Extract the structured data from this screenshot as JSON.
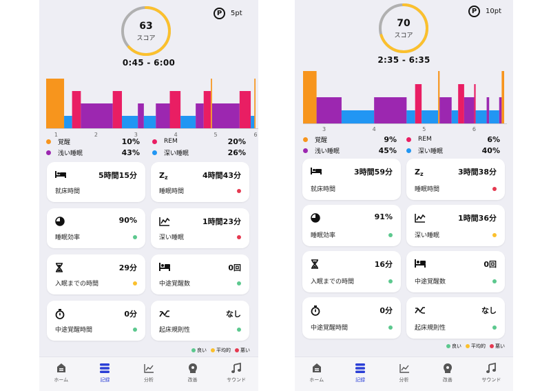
{
  "colors": {
    "awake": "#f7951d",
    "rem": "#e91e63",
    "light": "#9c27b0",
    "deep": "#2196f3",
    "good": "#5cc88e",
    "average": "#fbc02d",
    "bad": "#e53950",
    "score_arc": "#fbc02d",
    "score_rest": "#b0b0b0",
    "active_nav": "#2b3fd6"
  },
  "screens": [
    {
      "score": {
        "value": "63",
        "label": "スコア",
        "fraction": 0.63
      },
      "points": {
        "badge": "P",
        "value": "5pt"
      },
      "time_range": "0:45 - 6:00",
      "chart_data": {
        "type": "bar",
        "x_ticks": [
          "1",
          "2",
          "3",
          "4",
          "5",
          "6"
        ],
        "stage_levels": {
          "awake": 4,
          "rem": 3,
          "light": 2,
          "deep": 1
        },
        "segments": [
          {
            "stage": "awake",
            "start": 0.75,
            "end": 1.2
          },
          {
            "stage": "deep",
            "start": 1.2,
            "end": 1.4
          },
          {
            "stage": "rem",
            "start": 1.4,
            "end": 1.62
          },
          {
            "stage": "light",
            "start": 1.62,
            "end": 2.42
          },
          {
            "stage": "rem",
            "start": 2.42,
            "end": 2.65
          },
          {
            "stage": "deep",
            "start": 2.65,
            "end": 3.05
          },
          {
            "stage": "light",
            "start": 3.05,
            "end": 3.2
          },
          {
            "stage": "deep",
            "start": 3.2,
            "end": 3.5
          },
          {
            "stage": "light",
            "start": 3.5,
            "end": 3.85
          },
          {
            "stage": "rem",
            "start": 3.85,
            "end": 4.12
          },
          {
            "stage": "deep",
            "start": 4.12,
            "end": 4.5
          },
          {
            "stage": "light",
            "start": 4.5,
            "end": 4.7
          },
          {
            "stage": "rem",
            "start": 4.7,
            "end": 4.88
          },
          {
            "stage": "awake",
            "start": 4.88,
            "end": 4.91
          },
          {
            "stage": "light",
            "start": 4.91,
            "end": 5.6
          },
          {
            "stage": "rem",
            "start": 5.6,
            "end": 5.88
          },
          {
            "stage": "deep",
            "start": 5.88,
            "end": 5.97
          },
          {
            "stage": "awake",
            "start": 5.97,
            "end": 6.0
          }
        ],
        "x_range": [
          0.75,
          6.0
        ]
      },
      "legend": [
        {
          "name": "覚醒",
          "pct": "10%",
          "color": "#f7951d"
        },
        {
          "name": "REM",
          "pct": "20%",
          "color": "#e91e63"
        },
        {
          "name": "浅い睡眠",
          "pct": "43%",
          "color": "#9c27b0"
        },
        {
          "name": "深い睡眠",
          "pct": "26%",
          "color": "#2196f3"
        }
      ],
      "cards": [
        {
          "icon": "bed-icon",
          "value": "5時間15分",
          "label": "就床時間",
          "status": ""
        },
        {
          "icon": "zzz-icon",
          "value": "4時間43分",
          "label": "睡眠時間",
          "status": "bad"
        },
        {
          "icon": "pie-icon",
          "value": "90%",
          "label": "睡眠効率",
          "status": "good"
        },
        {
          "icon": "wave-chart-icon",
          "value": "1時間23分",
          "label": "深い睡眠",
          "status": "bad"
        },
        {
          "icon": "hourglass-icon",
          "value": "29分",
          "label": "入眠までの時間",
          "status": "average"
        },
        {
          "icon": "bed-person-icon",
          "value": "0回",
          "label": "中途覚醒数",
          "status": "good"
        },
        {
          "icon": "stopwatch-icon",
          "value": "0分",
          "label": "中途覚醒時間",
          "status": "good"
        },
        {
          "icon": "shuffle-icon",
          "value": "なし",
          "label": "起床規則性",
          "status": "good"
        }
      ],
      "status_legend": [
        {
          "label": "良い",
          "color": "#5cc88e"
        },
        {
          "label": "平均的",
          "color": "#fbc02d"
        },
        {
          "label": "悪い",
          "color": "#e53950"
        }
      ],
      "nav": [
        {
          "label": "ホーム",
          "icon": "home-icon",
          "active": false
        },
        {
          "label": "記録",
          "icon": "record-icon",
          "active": true
        },
        {
          "label": "分析",
          "icon": "analysis-icon",
          "active": false
        },
        {
          "label": "改善",
          "icon": "improve-icon",
          "active": false
        },
        {
          "label": "サウンド",
          "icon": "music-icon",
          "active": false
        }
      ]
    },
    {
      "score": {
        "value": "70",
        "label": "スコア",
        "fraction": 0.7
      },
      "points": {
        "badge": "P",
        "value": "10pt"
      },
      "time_range": "2:35 - 6:35",
      "chart_data": {
        "type": "bar",
        "x_ticks": [
          "3",
          "4",
          "5",
          "6"
        ],
        "stage_levels": {
          "awake": 4,
          "rem": 3,
          "light": 2,
          "deep": 1
        },
        "segments": [
          {
            "stage": "awake",
            "start": 2.58,
            "end": 2.85
          },
          {
            "stage": "light",
            "start": 2.85,
            "end": 3.35
          },
          {
            "stage": "deep",
            "start": 3.35,
            "end": 4.0
          },
          {
            "stage": "light",
            "start": 4.0,
            "end": 4.65
          },
          {
            "stage": "deep",
            "start": 4.65,
            "end": 4.82
          },
          {
            "stage": "rem",
            "start": 4.82,
            "end": 4.95
          },
          {
            "stage": "deep",
            "start": 4.95,
            "end": 5.28
          },
          {
            "stage": "awake",
            "start": 5.28,
            "end": 5.31
          },
          {
            "stage": "light",
            "start": 5.31,
            "end": 5.55
          },
          {
            "stage": "deep",
            "start": 5.55,
            "end": 5.68
          },
          {
            "stage": "rem",
            "start": 5.68,
            "end": 5.8
          },
          {
            "stage": "light",
            "start": 5.8,
            "end": 6.0
          },
          {
            "stage": "rem",
            "start": 6.0,
            "end": 6.03
          },
          {
            "stage": "deep",
            "start": 6.03,
            "end": 6.25
          },
          {
            "stage": "light",
            "start": 6.25,
            "end": 6.3
          },
          {
            "stage": "deep",
            "start": 6.3,
            "end": 6.5
          },
          {
            "stage": "light",
            "start": 6.5,
            "end": 6.55
          },
          {
            "stage": "awake",
            "start": 6.55,
            "end": 6.6
          }
        ],
        "x_range": [
          2.58,
          6.6
        ]
      },
      "legend": [
        {
          "name": "覚醒",
          "pct": "9%",
          "color": "#f7951d"
        },
        {
          "name": "REM",
          "pct": "6%",
          "color": "#e91e63"
        },
        {
          "name": "浅い睡眠",
          "pct": "45%",
          "color": "#9c27b0"
        },
        {
          "name": "深い睡眠",
          "pct": "40%",
          "color": "#2196f3"
        }
      ],
      "cards": [
        {
          "icon": "bed-icon",
          "value": "3時間59分",
          "label": "就床時間",
          "status": ""
        },
        {
          "icon": "zzz-icon",
          "value": "3時間38分",
          "label": "睡眠時間",
          "status": "bad"
        },
        {
          "icon": "pie-icon",
          "value": "91%",
          "label": "睡眠効率",
          "status": "good"
        },
        {
          "icon": "wave-chart-icon",
          "value": "1時間36分",
          "label": "深い睡眠",
          "status": "average"
        },
        {
          "icon": "hourglass-icon",
          "value": "16分",
          "label": "入眠までの時間",
          "status": "good"
        },
        {
          "icon": "bed-person-icon",
          "value": "0回",
          "label": "中途覚醒数",
          "status": "good"
        },
        {
          "icon": "stopwatch-icon",
          "value": "0分",
          "label": "中途覚醒時間",
          "status": "good"
        },
        {
          "icon": "shuffle-icon",
          "value": "なし",
          "label": "起床規則性",
          "status": "good"
        }
      ],
      "status_legend": [
        {
          "label": "良い",
          "color": "#5cc88e"
        },
        {
          "label": "平均的",
          "color": "#fbc02d"
        },
        {
          "label": "悪い",
          "color": "#e53950"
        }
      ],
      "nav": [
        {
          "label": "ホーム",
          "icon": "home-icon",
          "active": false
        },
        {
          "label": "記録",
          "icon": "record-icon",
          "active": true
        },
        {
          "label": "分析",
          "icon": "analysis-icon",
          "active": false
        },
        {
          "label": "改善",
          "icon": "improve-icon",
          "active": false
        },
        {
          "label": "サウンド",
          "icon": "music-icon",
          "active": false
        }
      ]
    }
  ]
}
